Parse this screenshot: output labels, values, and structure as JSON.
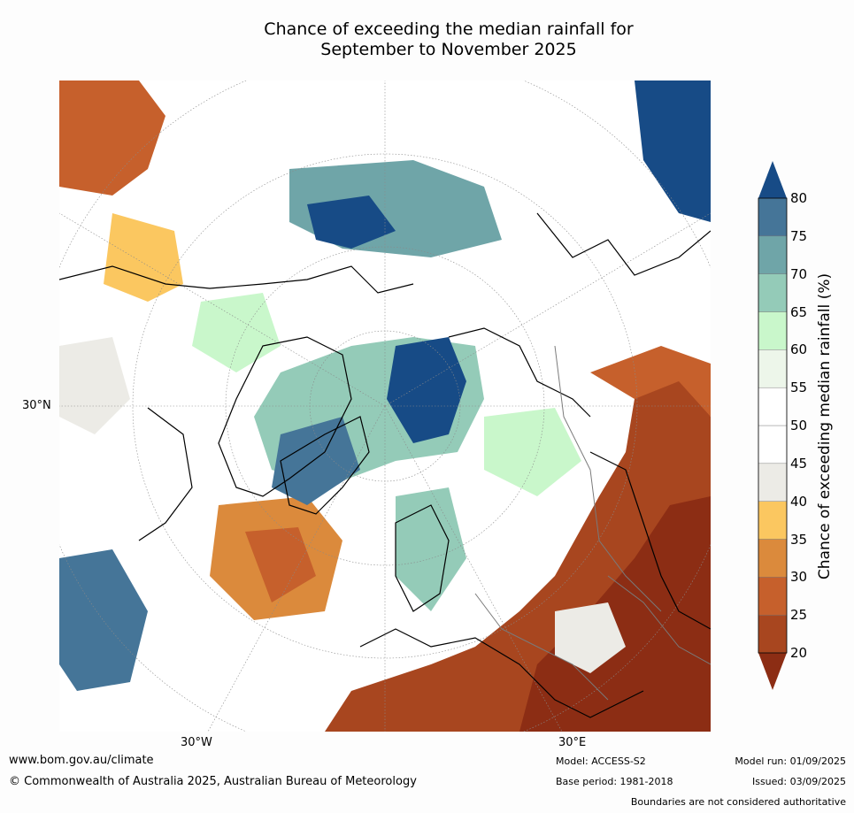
{
  "title_line1": "Chance of exceeding the median rainfall for",
  "title_line2": "September to November 2025",
  "map": {
    "projection": "north-polar-stereographic",
    "lon_labels": [
      "30°W",
      "30°E"
    ],
    "lat_labels": [
      "30°N"
    ]
  },
  "colorbar": {
    "label": "Chance of exceeding median rainfall (%)",
    "ticks": [
      "20",
      "25",
      "30",
      "35",
      "40",
      "45",
      "50",
      "55",
      "60",
      "65",
      "70",
      "75",
      "80"
    ],
    "colors": [
      "#8c2d14",
      "#a8461f",
      "#c6602c",
      "#db8a3c",
      "#fbc760",
      "#ecebe6",
      "#ffffff",
      "#ffffff",
      "#edf6ea",
      "#c9f7cb",
      "#94cbb8",
      "#6fa5a8",
      "#457598",
      "#174b86"
    ],
    "extend": "both"
  },
  "footer": {
    "website": "www.bom.gov.au/climate",
    "copyright": "© Commonwealth of Australia 2025, Australian Bureau of Meteorology",
    "model": "Model: ACCESS-S2",
    "base_period": "Base period: 1981-2018",
    "model_run": "Model run: 01/09/2025",
    "issued": "Issued: 03/09/2025",
    "disclaimer": "Boundaries are not considered authoritative"
  }
}
